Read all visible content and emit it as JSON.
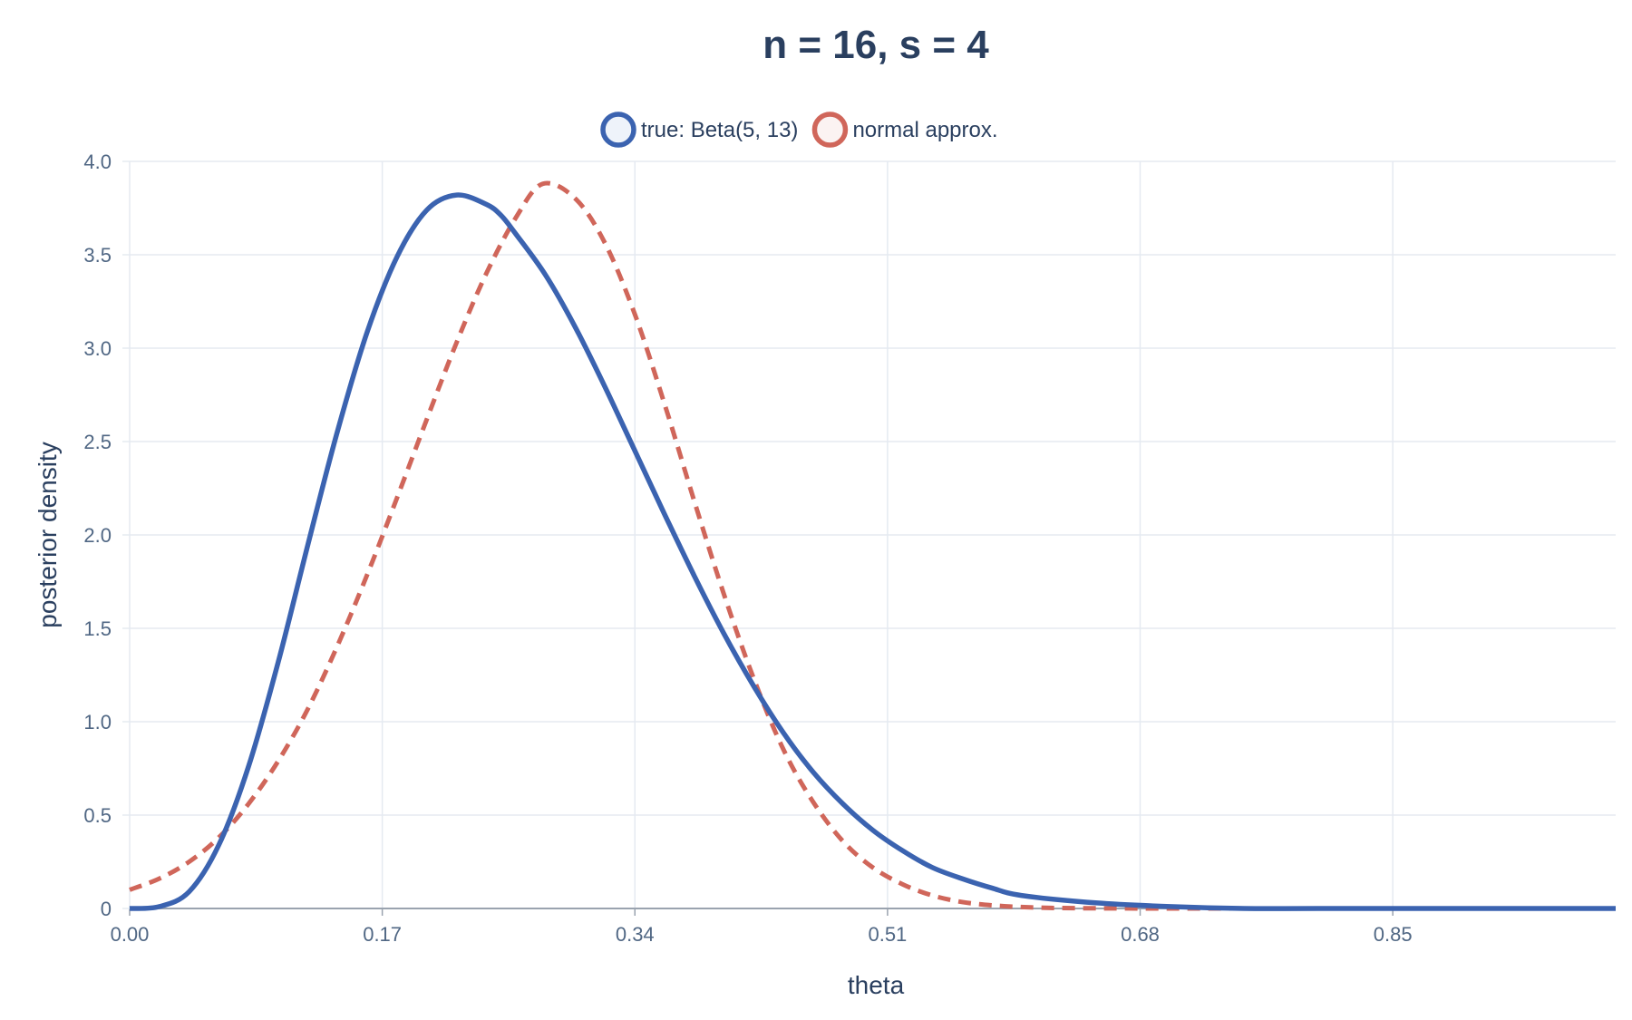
{
  "chart_data": {
    "type": "line",
    "title": "n = 16, s = 4",
    "xlabel": "theta",
    "ylabel": "posterior density",
    "xlim": [
      0,
      1
    ],
    "ylim": [
      0,
      4
    ],
    "x_ticks": [
      0,
      0.17,
      0.34,
      0.51,
      0.68,
      0.85
    ],
    "x_tick_labels": [
      "0.00",
      "0.17",
      "0.34",
      "0.51",
      "0.68",
      "0.85"
    ],
    "y_ticks": [
      0,
      0.5,
      1,
      1.5,
      2,
      2.5,
      3,
      3.5,
      4
    ],
    "y_tick_labels": [
      "0",
      "0.5",
      "1.0",
      "1.5",
      "2.0",
      "2.5",
      "3.0",
      "3.5",
      "4.0"
    ],
    "grid": true,
    "legend_position": "top-center",
    "series": [
      {
        "name": "true: Beta(5, 13)",
        "color": "#3b63b0",
        "fill": "#eef3fa",
        "dash": "solid",
        "x": [
          0,
          0.02,
          0.04,
          0.06,
          0.08,
          0.1,
          0.12,
          0.14,
          0.16,
          0.18,
          0.2,
          0.22,
          0.24,
          0.25,
          0.26,
          0.28,
          0.3,
          0.32,
          0.34,
          0.36,
          0.38,
          0.4,
          0.42,
          0.44,
          0.46,
          0.48,
          0.5,
          0.52,
          0.54,
          0.56,
          0.58,
          0.6,
          0.65,
          0.7,
          0.75,
          0.8,
          0.9,
          1.0
        ],
        "y": [
          0,
          0.01,
          0.09,
          0.34,
          0.76,
          1.32,
          1.95,
          2.56,
          3.09,
          3.49,
          3.74,
          3.82,
          3.77,
          3.71,
          3.61,
          3.39,
          3.11,
          2.79,
          2.45,
          2.11,
          1.78,
          1.47,
          1.19,
          0.94,
          0.73,
          0.56,
          0.42,
          0.31,
          0.22,
          0.16,
          0.11,
          0.07,
          0.03,
          0.01,
          0.0,
          0.0,
          0.0,
          0.0
        ]
      },
      {
        "name": "normal approx.",
        "color": "#d0665a",
        "fill": "#fbf3f2",
        "dash": "dashed",
        "x": [
          0,
          0.02,
          0.04,
          0.06,
          0.08,
          0.1,
          0.12,
          0.14,
          0.16,
          0.18,
          0.2,
          0.22,
          0.24,
          0.26,
          0.278,
          0.3,
          0.32,
          0.34,
          0.36,
          0.38,
          0.4,
          0.42,
          0.44,
          0.46,
          0.48,
          0.5,
          0.52,
          0.54,
          0.56,
          0.58,
          0.6,
          0.62,
          0.65,
          0.7,
          0.75,
          0.8,
          0.9,
          1.0
        ],
        "y": [
          0.1,
          0.16,
          0.25,
          0.38,
          0.56,
          0.79,
          1.07,
          1.41,
          1.79,
          2.2,
          2.62,
          3.03,
          3.4,
          3.7,
          3.88,
          3.8,
          3.56,
          3.18,
          2.7,
          2.18,
          1.68,
          1.23,
          0.85,
          0.57,
          0.36,
          0.22,
          0.13,
          0.07,
          0.035,
          0.017,
          0.008,
          0.003,
          0.001,
          0.0,
          0.0,
          0.0,
          0.0,
          0.0
        ]
      }
    ]
  }
}
